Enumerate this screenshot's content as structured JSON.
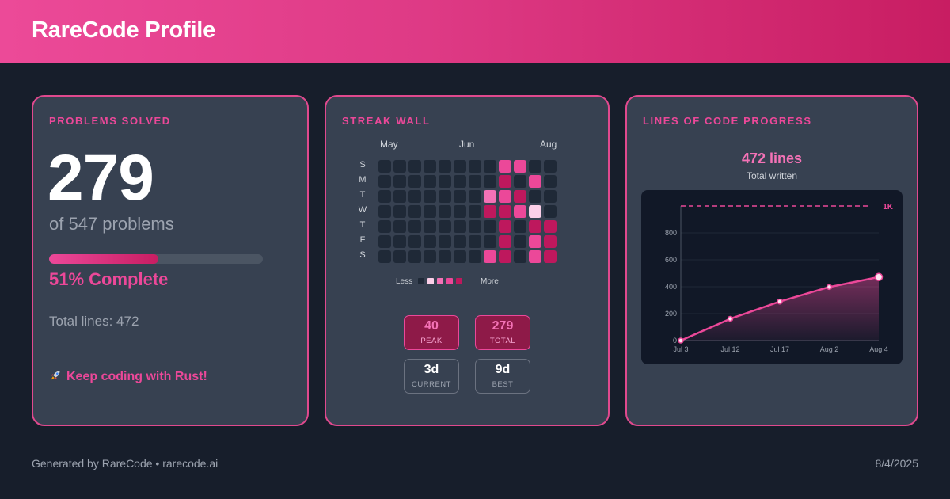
{
  "header": {
    "title": "RareCode Profile"
  },
  "solved_card": {
    "title": "PROBLEMS SOLVED",
    "count": "279",
    "of_text": "of 547 problems",
    "progress_fraction": 0.51,
    "percent_text": "51% Complete",
    "total_lines_text": "Total lines: 472",
    "keep_coding_icon": "rocket-icon",
    "keep_coding_text": "Keep coding with Rust!"
  },
  "streak_card": {
    "title": "STREAK WALL",
    "months": [
      "May",
      "Jun",
      "Aug"
    ],
    "days": [
      "S",
      "M",
      "T",
      "W",
      "T",
      "F",
      "S"
    ],
    "palette": [
      "#1f2937",
      "#fbcfe8",
      "#f472b6",
      "#ec4899",
      "#be185d"
    ],
    "grid": [
      [
        0,
        0,
        0,
        0,
        0,
        0,
        0,
        0,
        3,
        3,
        0,
        0
      ],
      [
        0,
        0,
        0,
        0,
        0,
        0,
        0,
        0,
        4,
        0,
        3,
        0
      ],
      [
        0,
        0,
        0,
        0,
        0,
        0,
        0,
        2,
        3,
        4,
        0,
        0
      ],
      [
        0,
        0,
        0,
        0,
        0,
        0,
        0,
        4,
        4,
        3,
        1,
        0
      ],
      [
        0,
        0,
        0,
        0,
        0,
        0,
        0,
        0,
        4,
        0,
        4,
        4
      ],
      [
        0,
        0,
        0,
        0,
        0,
        0,
        0,
        0,
        4,
        0,
        3,
        4
      ],
      [
        0,
        0,
        0,
        0,
        0,
        0,
        0,
        3,
        4,
        0,
        3,
        4
      ]
    ],
    "legend_less": "Less",
    "legend_more": "More",
    "legend_levels": [
      "#1f2937",
      "#fbcfe8",
      "#f472b6",
      "#ec4899",
      "#be185d"
    ],
    "stats": [
      {
        "value": "40",
        "label": "PEAK",
        "highlight": true
      },
      {
        "value": "279",
        "label": "TOTAL",
        "highlight": true
      },
      {
        "value": "3d",
        "label": "CURRENT",
        "highlight": false
      },
      {
        "value": "9d",
        "label": "BEST",
        "highlight": false
      }
    ]
  },
  "loc_card": {
    "title": "LINES OF CODE PROGRESS",
    "value_text": "472 lines",
    "caption": "Total written"
  },
  "chart_data": {
    "type": "area",
    "x": [
      "Jul 3",
      "Jul 12",
      "Jul 17",
      "Aug 2",
      "Aug 4"
    ],
    "values": [
      0,
      162,
      290,
      398,
      472
    ],
    "ylim": [
      0,
      1000
    ],
    "yticks": [
      "0",
      "200",
      "400",
      "600",
      "800"
    ],
    "ytick_values": [
      0,
      200,
      400,
      600,
      800
    ],
    "target_value": 1000,
    "target_label": "1K",
    "line_color": "#ec4899",
    "grid": true
  },
  "footer": {
    "left": "Generated by RareCode • rarecode.ai",
    "right": "8/4/2025"
  }
}
